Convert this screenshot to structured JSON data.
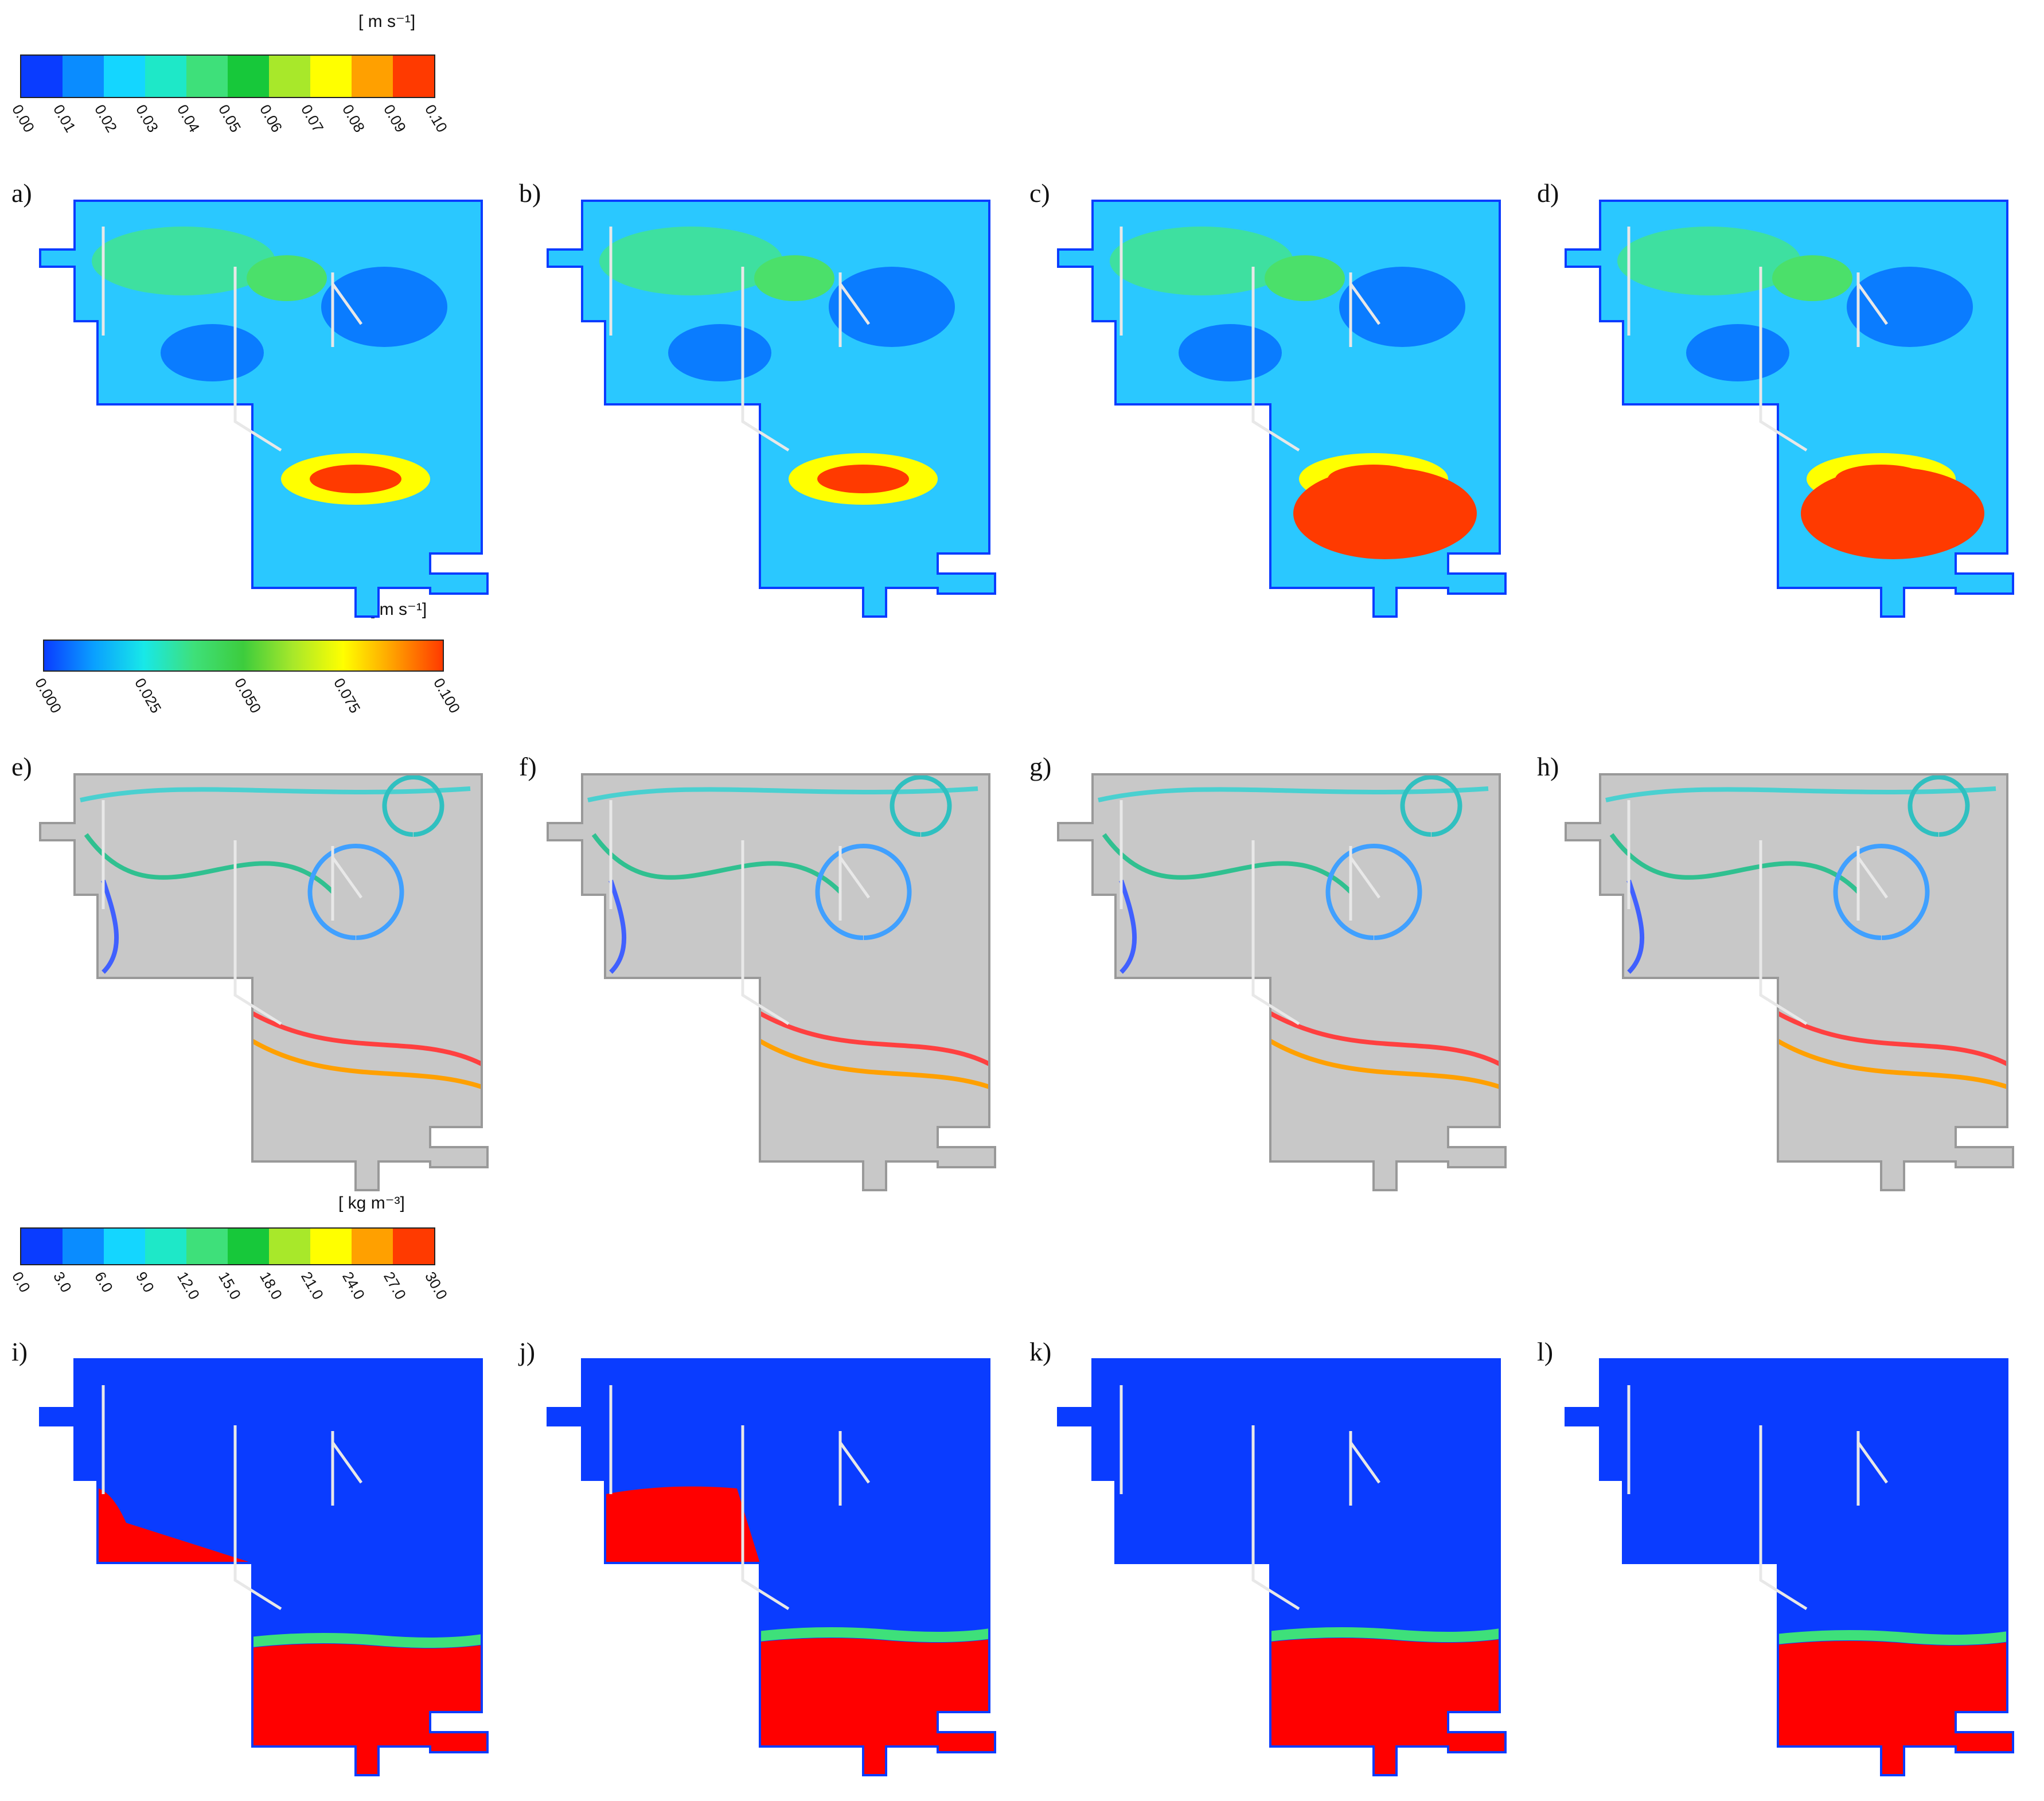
{
  "legends": [
    {
      "id": "velocity-legend",
      "unit": "[ m s⁻¹]",
      "ticks": [
        "0.00",
        "0.01",
        "0.02",
        "0.03",
        "0.04",
        "0.05",
        "0.06",
        "0.07",
        "0.08",
        "0.09",
        "0.10"
      ],
      "colors": [
        "#0a3cff",
        "#0a8cff",
        "#14d6ff",
        "#1ee8c8",
        "#3ee07a",
        "#17c83a",
        "#a8e82a",
        "#ffff00",
        "#ffa000",
        "#ff3a00"
      ]
    },
    {
      "id": "streamline-legend",
      "unit": "[ m s⁻¹]",
      "ticks": [
        "0.000",
        "0.025",
        "0.050",
        "0.075",
        "0.100"
      ]
    },
    {
      "id": "density-legend",
      "unit": "[ kg m⁻³]",
      "ticks": [
        "0.0",
        "3.0",
        "6.0",
        "9.0",
        "12.0",
        "15.0",
        "18.0",
        "21.0",
        "24.0",
        "27.0",
        "30.0"
      ],
      "colors": [
        "#0a3cff",
        "#0a8cff",
        "#14d6ff",
        "#1ee8c8",
        "#3ee07a",
        "#17c83a",
        "#a8e82a",
        "#ffff00",
        "#ffa000",
        "#ff3a00"
      ]
    }
  ],
  "panels": [
    {
      "label": "a)",
      "kind": "velocity"
    },
    {
      "label": "b)",
      "kind": "velocity"
    },
    {
      "label": "c)",
      "kind": "velocity"
    },
    {
      "label": "d)",
      "kind": "velocity"
    },
    {
      "label": "e)",
      "kind": "streamline"
    },
    {
      "label": "f)",
      "kind": "streamline"
    },
    {
      "label": "g)",
      "kind": "streamline"
    },
    {
      "label": "h)",
      "kind": "streamline"
    },
    {
      "label": "i)",
      "kind": "density"
    },
    {
      "label": "j)",
      "kind": "density"
    },
    {
      "label": "k)",
      "kind": "density"
    },
    {
      "label": "l)",
      "kind": "density"
    }
  ]
}
